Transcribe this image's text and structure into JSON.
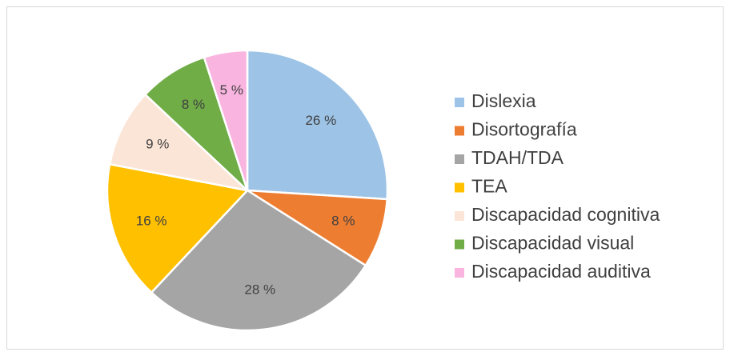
{
  "chart_data": {
    "type": "pie",
    "categories": [
      "Dislexia",
      "Disortografía",
      "TDAH/TDA",
      "TEA",
      "Discapacidad cognitiva",
      "Discapacidad visual",
      "Discapacidad auditiva"
    ],
    "values": [
      26,
      8,
      28,
      16,
      9,
      8,
      5
    ],
    "value_labels": [
      "26 %",
      "8 %",
      "28 %",
      "16 %",
      "9 %",
      "8 %",
      "5 %"
    ],
    "colors": [
      "#9dc3e6",
      "#ed7d31",
      "#a5a5a5",
      "#ffc000",
      "#fbe5d6",
      "#70ad47",
      "#f9b4df"
    ],
    "legend": "right"
  }
}
